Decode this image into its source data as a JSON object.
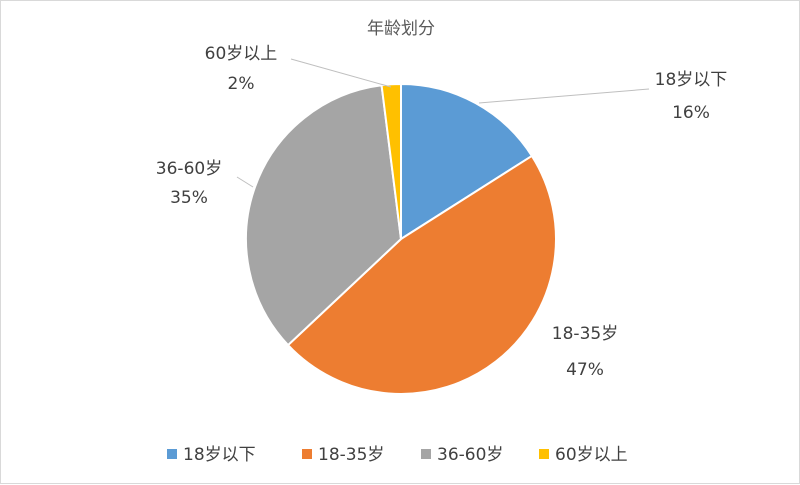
{
  "chart_data": {
    "type": "pie",
    "title": "年龄划分",
    "categories": [
      "18岁以下",
      "18-35岁",
      "36-60岁",
      "60岁以上"
    ],
    "values": [
      16,
      47,
      35,
      2
    ],
    "value_labels": [
      "16%",
      "47%",
      "35%",
      "2%"
    ],
    "colors": [
      "#5b9bd5",
      "#ed7d31",
      "#a5a5a5",
      "#ffc000"
    ],
    "legend_position": "bottom"
  }
}
